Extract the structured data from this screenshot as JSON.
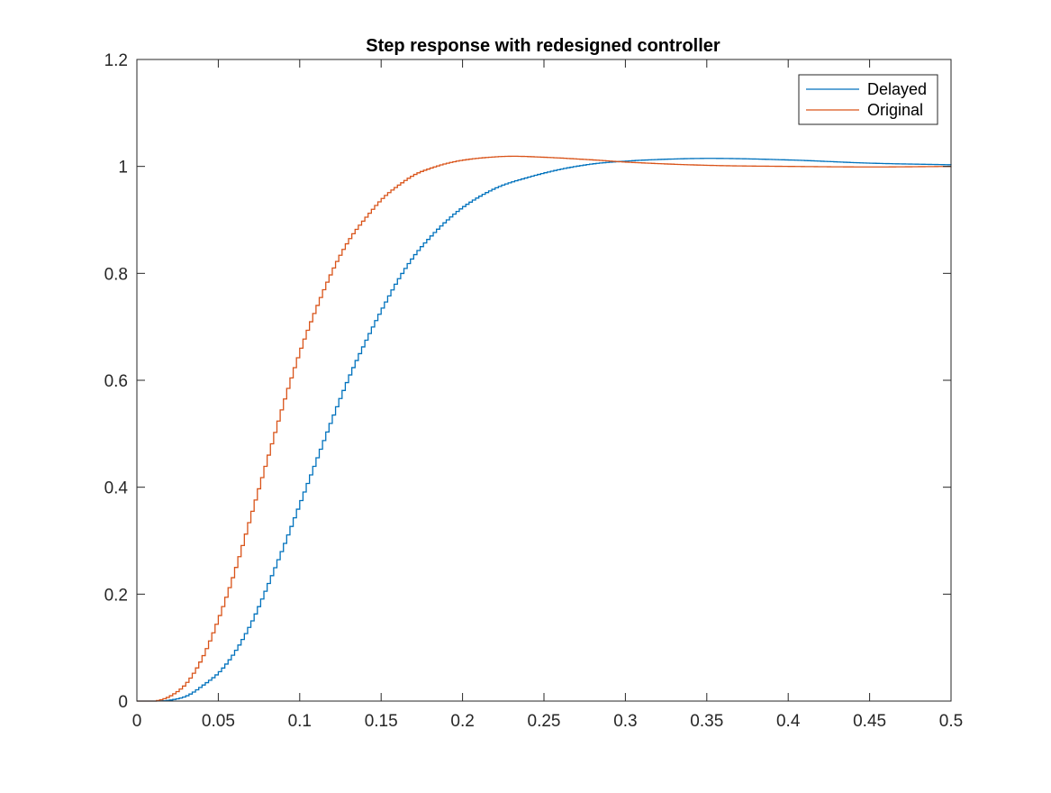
{
  "chart_data": {
    "type": "line",
    "title": "Step response with redesigned controller",
    "xlabel": "",
    "ylabel": "",
    "xlim": [
      0,
      0.5
    ],
    "ylim": [
      0,
      1.2
    ],
    "xticks": [
      0,
      0.05,
      0.1,
      0.15,
      0.2,
      0.25,
      0.3,
      0.35,
      0.4,
      0.45,
      0.5
    ],
    "xtick_labels": [
      "0",
      "0.05",
      "0.1",
      "0.15",
      "0.2",
      "0.25",
      "0.3",
      "0.35",
      "0.4",
      "0.45",
      "0.5"
    ],
    "yticks": [
      0,
      0.2,
      0.4,
      0.6,
      0.8,
      1,
      1.2
    ],
    "ytick_labels": [
      "0",
      "0.2",
      "0.4",
      "0.6",
      "0.8",
      "1",
      "1.2"
    ],
    "grid": false,
    "legend_position": "top-right",
    "step_interpolation": true,
    "series": [
      {
        "name": "Delayed",
        "color": "#0072BD",
        "x": [
          0,
          0.01,
          0.02,
          0.03,
          0.04,
          0.05,
          0.06,
          0.07,
          0.08,
          0.09,
          0.1,
          0.11,
          0.12,
          0.13,
          0.14,
          0.15,
          0.16,
          0.17,
          0.18,
          0.19,
          0.2,
          0.22,
          0.24,
          0.26,
          0.28,
          0.3,
          0.32,
          0.35,
          0.4,
          0.45,
          0.5
        ],
        "y": [
          0,
          0,
          0.002,
          0.01,
          0.03,
          0.055,
          0.095,
          0.15,
          0.22,
          0.295,
          0.375,
          0.455,
          0.535,
          0.61,
          0.675,
          0.735,
          0.79,
          0.835,
          0.87,
          0.9,
          0.925,
          0.96,
          0.98,
          0.995,
          1.005,
          1.01,
          1.013,
          1.015,
          1.012,
          1.006,
          1.003
        ]
      },
      {
        "name": "Original",
        "color": "#D95319",
        "x": [
          0,
          0.01,
          0.02,
          0.03,
          0.04,
          0.05,
          0.06,
          0.07,
          0.08,
          0.09,
          0.1,
          0.11,
          0.12,
          0.13,
          0.14,
          0.15,
          0.16,
          0.17,
          0.18,
          0.19,
          0.2,
          0.22,
          0.23,
          0.25,
          0.28,
          0.3,
          0.35,
          0.4,
          0.45,
          0.5
        ],
        "y": [
          0,
          0,
          0.01,
          0.035,
          0.085,
          0.16,
          0.25,
          0.355,
          0.46,
          0.565,
          0.66,
          0.74,
          0.81,
          0.865,
          0.905,
          0.94,
          0.965,
          0.985,
          0.997,
          1.006,
          1.012,
          1.018,
          1.019,
          1.017,
          1.012,
          1.008,
          1.002,
          1.0,
          0.999,
          1.0
        ]
      }
    ]
  }
}
